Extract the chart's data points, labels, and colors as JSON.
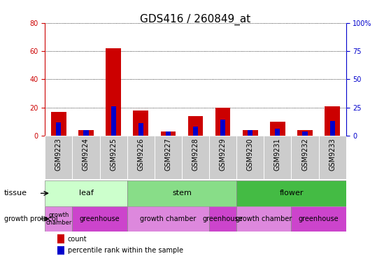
{
  "title": "GDS416 / 260849_at",
  "samples": [
    "GSM9223",
    "GSM9224",
    "GSM9225",
    "GSM9226",
    "GSM9227",
    "GSM9228",
    "GSM9229",
    "GSM9230",
    "GSM9231",
    "GSM9232",
    "GSM9233"
  ],
  "count_values": [
    17,
    4,
    62,
    18,
    3,
    14,
    20,
    4,
    10,
    4,
    21
  ],
  "percentile_values": [
    12,
    5,
    26,
    11,
    4,
    8,
    14,
    5,
    6,
    4,
    13
  ],
  "count_color": "#cc0000",
  "percentile_color": "#0000cc",
  "left_ylim": [
    0,
    80
  ],
  "right_ylim": [
    0,
    100
  ],
  "left_yticks": [
    0,
    20,
    40,
    60,
    80
  ],
  "right_yticks": [
    0,
    25,
    50,
    75,
    100
  ],
  "right_yticklabels": [
    "0",
    "25",
    "50",
    "75",
    "100%"
  ],
  "tissue_groups": [
    {
      "label": "leaf",
      "start": 0,
      "end": 2,
      "color": "#ccffcc"
    },
    {
      "label": "stem",
      "start": 3,
      "end": 6,
      "color": "#88dd88"
    },
    {
      "label": "flower",
      "start": 7,
      "end": 10,
      "color": "#44bb44"
    }
  ],
  "protocol_groups": [
    {
      "label": "growth\nchamber",
      "start": 0,
      "end": 0,
      "color": "#dd88dd",
      "small": true
    },
    {
      "label": "greenhouse",
      "start": 1,
      "end": 2,
      "color": "#cc44cc",
      "small": false
    },
    {
      "label": "growth chamber",
      "start": 3,
      "end": 5,
      "color": "#dd88dd",
      "small": false
    },
    {
      "label": "greenhouse",
      "start": 6,
      "end": 6,
      "color": "#cc44cc",
      "small": false
    },
    {
      "label": "growth chamber",
      "start": 7,
      "end": 8,
      "color": "#dd88dd",
      "small": false
    },
    {
      "label": "greenhouse",
      "start": 9,
      "end": 10,
      "color": "#cc44cc",
      "small": false
    }
  ],
  "tissue_row_label": "tissue",
  "protocol_row_label": "growth protocol",
  "legend_count_label": "count",
  "legend_percentile_label": "percentile rank within the sample",
  "bar_width": 0.55,
  "perc_bar_width": 0.18,
  "grid_color": "#000000",
  "bg_color": "#ffffff",
  "tick_bg_color": "#cccccc",
  "axis_color_left": "#cc0000",
  "axis_color_right": "#0000cc",
  "title_fontsize": 11,
  "tick_fontsize": 7,
  "label_fontsize": 8,
  "sample_fontsize": 7
}
